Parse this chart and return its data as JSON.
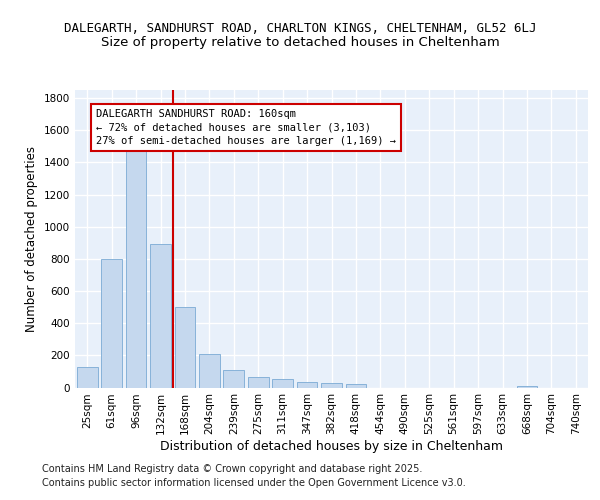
{
  "title1": "DALEGARTH, SANDHURST ROAD, CHARLTON KINGS, CHELTENHAM, GL52 6LJ",
  "title2": "Size of property relative to detached houses in Cheltenham",
  "xlabel": "Distribution of detached houses by size in Cheltenham",
  "ylabel": "Number of detached properties",
  "categories": [
    "25sqm",
    "61sqm",
    "96sqm",
    "132sqm",
    "168sqm",
    "204sqm",
    "239sqm",
    "275sqm",
    "311sqm",
    "347sqm",
    "382sqm",
    "418sqm",
    "454sqm",
    "490sqm",
    "525sqm",
    "561sqm",
    "597sqm",
    "633sqm",
    "668sqm",
    "704sqm",
    "740sqm"
  ],
  "values": [
    125,
    800,
    1500,
    890,
    500,
    210,
    110,
    65,
    50,
    35,
    30,
    20,
    0,
    0,
    0,
    0,
    0,
    0,
    8,
    0,
    0
  ],
  "bar_color": "#c5d8ee",
  "bar_edge_color": "#7aaad4",
  "vline_index": 4,
  "vline_color": "#cc0000",
  "annotation_line1": "DALEGARTH SANDHURST ROAD: 160sqm",
  "annotation_line2": "← 72% of detached houses are smaller (3,103)",
  "annotation_line3": "27% of semi-detached houses are larger (1,169) →",
  "annotation_box_facecolor": "#ffffff",
  "annotation_box_edgecolor": "#cc0000",
  "ylim": [
    0,
    1850
  ],
  "yticks": [
    0,
    200,
    400,
    600,
    800,
    1000,
    1200,
    1400,
    1600,
    1800
  ],
  "fig_bg_color": "#ffffff",
  "plot_bg_color": "#e8f0fa",
  "grid_color": "#ffffff",
  "footer": "Contains HM Land Registry data © Crown copyright and database right 2025.\nContains public sector information licensed under the Open Government Licence v3.0.",
  "title1_fontsize": 9,
  "title2_fontsize": 9.5,
  "ylabel_fontsize": 8.5,
  "xlabel_fontsize": 9,
  "tick_fontsize": 7.5,
  "ann_fontsize": 7.5,
  "footer_fontsize": 7
}
